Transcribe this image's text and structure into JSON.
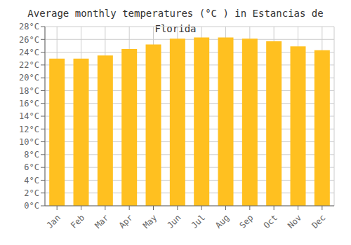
{
  "chart_data": {
    "type": "bar",
    "title": "Average monthly temperatures (°C ) in Estancias de Florida",
    "categories": [
      "Jan",
      "Feb",
      "Mar",
      "Apr",
      "May",
      "Jun",
      "Jul",
      "Aug",
      "Sep",
      "Oct",
      "Nov",
      "Dec"
    ],
    "values": [
      23,
      23,
      23.5,
      24.5,
      25.2,
      26.1,
      26.3,
      26.3,
      26.1,
      25.7,
      24.9,
      24.3
    ],
    "color": "#FFC020",
    "ylim": [
      0,
      28
    ],
    "yticks": [
      {
        "value": 0,
        "label": "0°C"
      },
      {
        "value": 2,
        "label": "2°C"
      },
      {
        "value": 4,
        "label": "4°C"
      },
      {
        "value": 6,
        "label": "6°C"
      },
      {
        "value": 8,
        "label": "8°C"
      },
      {
        "value": 10,
        "label": "10°C"
      },
      {
        "value": 12,
        "label": "12°C"
      },
      {
        "value": 14,
        "label": "14°C"
      },
      {
        "value": 16,
        "label": "16°C"
      },
      {
        "value": 18,
        "label": "18°C"
      },
      {
        "value": 20,
        "label": "20°C"
      },
      {
        "value": 22,
        "label": "22°C"
      },
      {
        "value": 24,
        "label": "24°C"
      },
      {
        "value": 26,
        "label": "26°C"
      },
      {
        "value": 28,
        "label": "28°C"
      }
    ],
    "grid": true
  }
}
